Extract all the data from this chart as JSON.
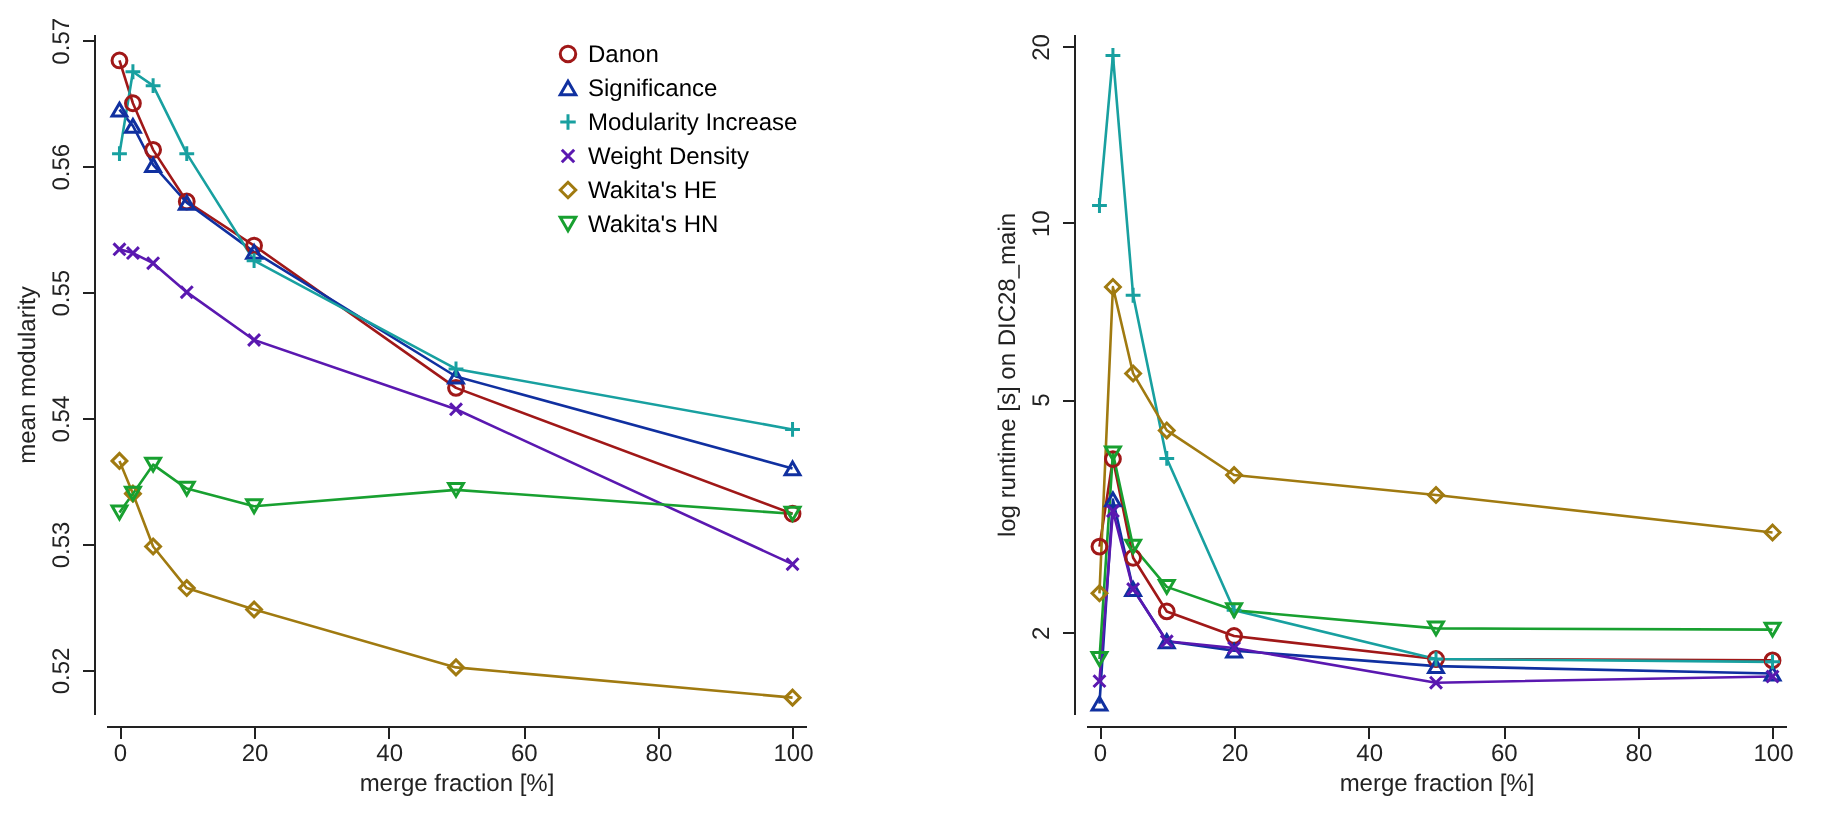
{
  "chart_data": [
    {
      "type": "line",
      "xlabel": "merge fraction [%]",
      "ylabel": "mean modularity",
      "x": [
        0,
        2,
        5,
        10,
        20,
        50,
        100
      ],
      "xlim": [
        -2,
        102
      ],
      "xticks": [
        0,
        20,
        40,
        60,
        80,
        100
      ],
      "ylim": [
        0.5165,
        0.5705
      ],
      "yticks": [
        0.52,
        0.53,
        0.54,
        0.55,
        0.56,
        0.57
      ],
      "grid": false,
      "legend": "top right",
      "line_style": "solid",
      "series": [
        {
          "name": "Danon",
          "color": "#a01818",
          "marker": "circle",
          "values": [
            0.5684,
            0.565,
            0.5613,
            0.5572,
            0.5537,
            0.5424,
            0.5324
          ]
        },
        {
          "name": "Significance",
          "color": "#1030a0",
          "marker": "triangle",
          "values": [
            0.5645,
            0.5632,
            0.5601,
            0.5571,
            0.5532,
            0.5433,
            0.536
          ]
        },
        {
          "name": "Modularity Increase",
          "color": "#18a0a0",
          "marker": "cross",
          "values": [
            0.561,
            0.5675,
            0.5664,
            0.561,
            0.5525,
            0.5439,
            0.5391
          ]
        },
        {
          "name": "Weight Density",
          "color": "#5a18b0",
          "marker": "x",
          "values": [
            0.5534,
            0.5531,
            0.5523,
            0.55,
            0.5462,
            0.5407,
            0.5284
          ]
        },
        {
          "name": "Wakita's HE",
          "color": "#a07a10",
          "marker": "diamond",
          "values": [
            0.5366,
            0.534,
            0.5298,
            0.5265,
            0.5248,
            0.5202,
            0.5178
          ]
        },
        {
          "name": "Wakita's HN",
          "color": "#18a030",
          "marker": "triangle-down",
          "values": [
            0.5325,
            0.534,
            0.5363,
            0.5344,
            0.533,
            0.5343,
            0.5324
          ]
        }
      ]
    },
    {
      "type": "line",
      "xlabel": "merge fraction [%]",
      "ylabel": "log runtime [s] on DIC28_main",
      "x": [
        0,
        2,
        5,
        10,
        20,
        50,
        100
      ],
      "xlim": [
        -2,
        102
      ],
      "xticks": [
        0,
        20,
        40,
        60,
        80,
        100
      ],
      "log": "y",
      "ylim": [
        1.45,
        21
      ],
      "yticks": [
        2,
        5,
        10,
        20
      ],
      "grid": false,
      "legend": false,
      "line_style": "solid",
      "series": [
        {
          "color": "#a01818",
          "marker": "circle",
          "values": [
            2.8,
            3.95,
            2.68,
            2.17,
            1.97,
            1.8,
            1.79
          ]
        },
        {
          "color": "#1030a0",
          "marker": "triangle",
          "values": [
            1.51,
            3.37,
            2.37,
            1.93,
            1.86,
            1.75,
            1.7
          ]
        },
        {
          "color": "#18a0a0",
          "marker": "cross",
          "values": [
            10.7,
            19.3,
            7.52,
            3.96,
            2.18,
            1.8,
            1.78
          ]
        },
        {
          "color": "#5a18b0",
          "marker": "x",
          "values": [
            1.65,
            3.22,
            2.37,
            1.93,
            1.88,
            1.64,
            1.68
          ]
        },
        {
          "color": "#a07a10",
          "marker": "diamond",
          "values": [
            2.33,
            7.77,
            5.53,
            4.42,
            3.71,
            3.43,
            2.96
          ]
        },
        {
          "color": "#18a030",
          "marker": "triangle-down",
          "values": [
            1.8,
            4.04,
            2.8,
            2.39,
            2.18,
            2.03,
            2.02
          ]
        }
      ]
    }
  ]
}
